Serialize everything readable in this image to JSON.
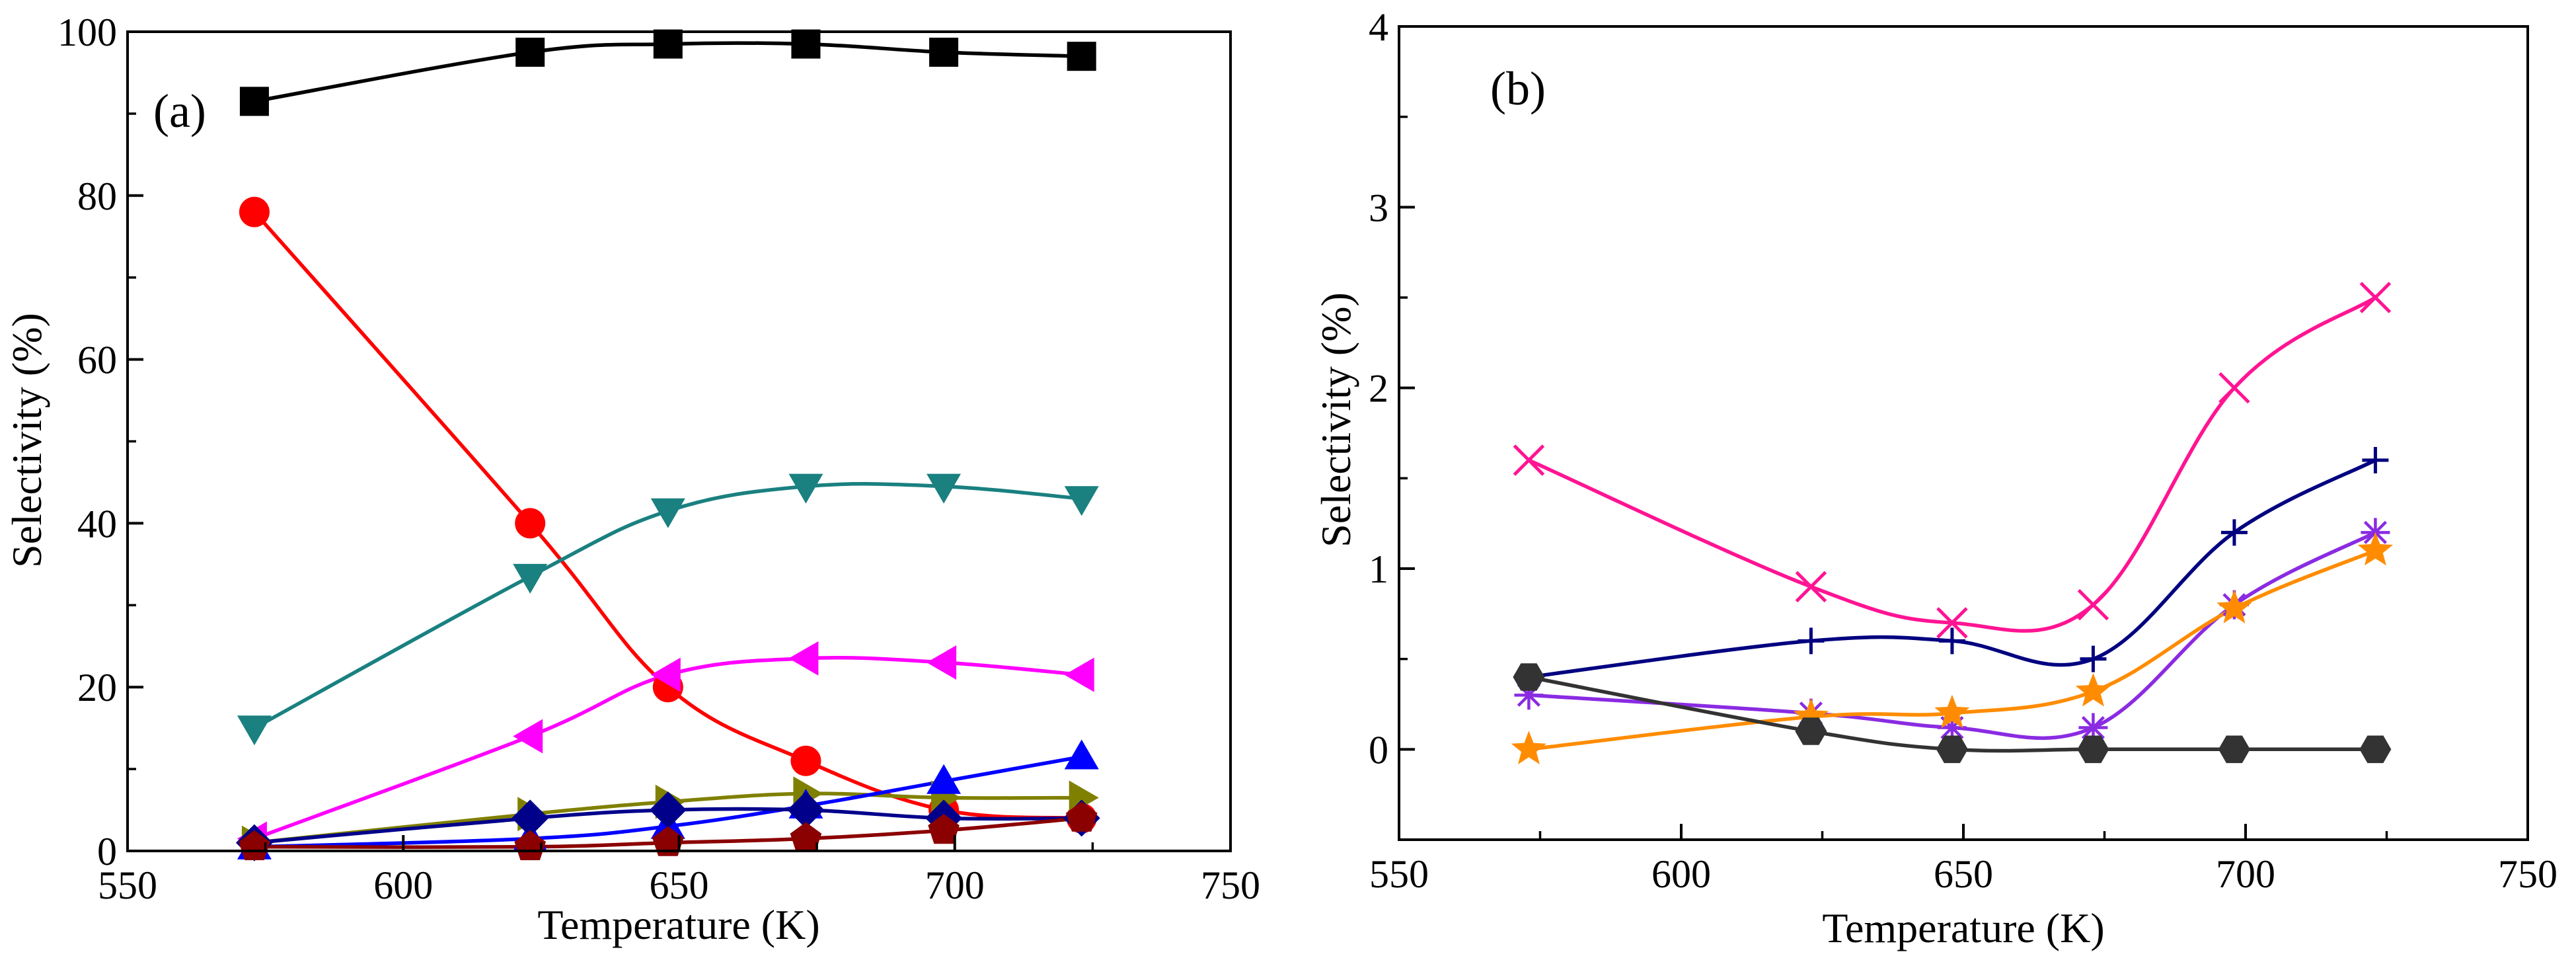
{
  "chart_data": [
    {
      "type": "line",
      "panel_label": "(a)",
      "xlabel": "Temperature (K)",
      "ylabel": "Selectivity (%)",
      "xlim": [
        550,
        750
      ],
      "ylim": [
        0,
        100
      ],
      "xticks": [
        550,
        600,
        650,
        700,
        750
      ],
      "yticks": [
        0,
        20,
        40,
        60,
        80,
        100
      ],
      "x_tick_labels": [
        "550",
        "600",
        "650",
        "700",
        "750"
      ],
      "y_tick_labels": [
        "0",
        "20",
        "40",
        "60",
        "80",
        "100"
      ],
      "x": [
        573,
        623,
        648,
        673,
        698,
        723
      ],
      "series": [
        {
          "name": "black-square",
          "color": "#000000",
          "marker": "square",
          "values": [
            91.5,
            97.5,
            98.5,
            98.5,
            97.5,
            97.0
          ]
        },
        {
          "name": "red-circle",
          "color": "#ff0000",
          "marker": "circle",
          "values": [
            78.0,
            40.0,
            20.0,
            11.0,
            5.0,
            4.0
          ]
        },
        {
          "name": "teal-triangle-down",
          "color": "#1a8080",
          "marker": "triangle-down",
          "values": [
            15.0,
            33.5,
            41.5,
            44.5,
            44.5,
            43.0
          ]
        },
        {
          "name": "magenta-triangle-left",
          "color": "#ff00ff",
          "marker": "triangle-left",
          "values": [
            1.5,
            14.0,
            21.5,
            23.5,
            23.0,
            21.5
          ]
        },
        {
          "name": "olive-triangle-right",
          "color": "#808000",
          "marker": "triangle-right",
          "values": [
            1.0,
            4.5,
            6.0,
            7.0,
            6.5,
            6.5
          ]
        },
        {
          "name": "blue-triangle-up",
          "color": "#0000ff",
          "marker": "triangle-up",
          "values": [
            0.5,
            1.5,
            3.0,
            5.5,
            8.5,
            11.5
          ]
        },
        {
          "name": "navy-diamond",
          "color": "#00008b",
          "marker": "diamond",
          "values": [
            1.0,
            4.0,
            5.0,
            5.0,
            4.0,
            4.0
          ]
        },
        {
          "name": "darkred-pentagon",
          "color": "#8b0000",
          "marker": "pentagon",
          "values": [
            0.5,
            0.5,
            1.0,
            1.5,
            2.5,
            4.0
          ]
        }
      ]
    },
    {
      "type": "line",
      "panel_label": "(b)",
      "xlabel": "Temperature (K)",
      "ylabel": "Selectivity (%)",
      "xlim": [
        550,
        750
      ],
      "ylim": [
        -0.5,
        4
      ],
      "xticks": [
        550,
        600,
        650,
        700,
        750
      ],
      "yticks": [
        0,
        1,
        2,
        3,
        4
      ],
      "x_tick_labels": [
        "550",
        "600",
        "650",
        "700",
        "750"
      ],
      "y_tick_labels": [
        "0",
        "1",
        "2",
        "3",
        "4"
      ],
      "x": [
        573,
        623,
        648,
        673,
        698,
        723
      ],
      "series": [
        {
          "name": "pink-cross",
          "color": "#ff1493",
          "marker": "x",
          "values": [
            1.6,
            0.9,
            0.7,
            0.8,
            2.0,
            2.5
          ]
        },
        {
          "name": "navy-plus",
          "color": "#000080",
          "marker": "plus",
          "values": [
            0.4,
            0.6,
            0.6,
            0.5,
            1.2,
            1.6
          ]
        },
        {
          "name": "purple-asterisk",
          "color": "#8a2be2",
          "marker": "asterisk",
          "values": [
            0.3,
            0.2,
            0.12,
            0.12,
            0.8,
            1.2
          ]
        },
        {
          "name": "orange-star",
          "color": "#ff8c00",
          "marker": "star",
          "values": [
            0.0,
            0.18,
            0.2,
            0.32,
            0.78,
            1.1
          ]
        },
        {
          "name": "gray-hexagon",
          "color": "#333333",
          "marker": "hexagon",
          "values": [
            0.4,
            0.1,
            0.0,
            0.0,
            0.0,
            0.0
          ]
        }
      ]
    }
  ]
}
